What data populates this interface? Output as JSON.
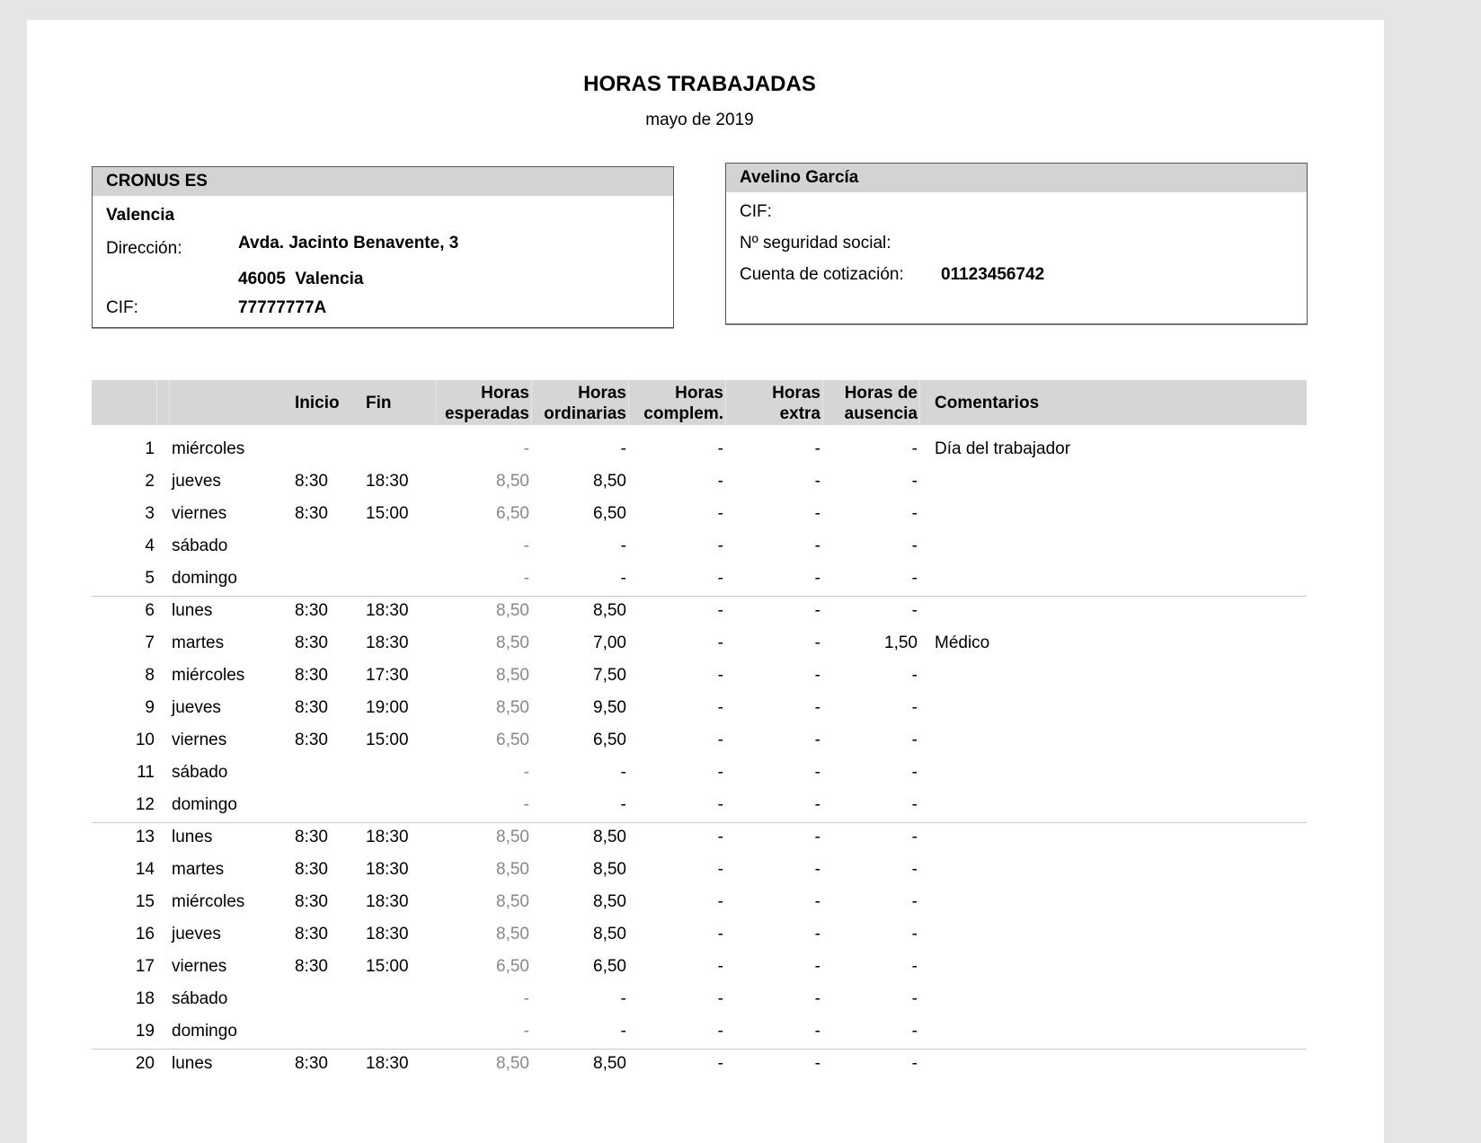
{
  "title": "HORAS TRABAJADAS",
  "period": "mayo de 2019",
  "company": {
    "name": "CRONUS ES",
    "city": "Valencia",
    "address_label": "Dirección:",
    "address_line1": "Avda. Jacinto Benavente, 3",
    "address_line2": "46005  Valencia",
    "cif_label": "CIF:",
    "cif": "77777777A"
  },
  "employee": {
    "name": "Avelino García",
    "cif_label": "CIF:",
    "ss_label": "Nº seguridad social:",
    "account_label": "Cuenta de cotización:",
    "account": "01123456742"
  },
  "columns": {
    "inicio": "Inicio",
    "fin": "Fin",
    "esperadas": [
      "Horas",
      "esperadas"
    ],
    "ordinarias": [
      "Horas",
      "ordinarias"
    ],
    "complem": [
      "Horas",
      "complem."
    ],
    "extra": [
      "Horas",
      "extra"
    ],
    "ausencia": [
      "Horas de",
      "ausencia"
    ],
    "comentarios": "Comentarios"
  },
  "rows": [
    [
      "1",
      "miércoles",
      "",
      "",
      "-",
      "-",
      "-",
      "-",
      "-",
      "Día del trabajador"
    ],
    [
      "2",
      "jueves",
      "8:30",
      "18:30",
      "8,50",
      "8,50",
      "-",
      "-",
      "-",
      ""
    ],
    [
      "3",
      "viernes",
      "8:30",
      "15:00",
      "6,50",
      "6,50",
      "-",
      "-",
      "-",
      ""
    ],
    [
      "4",
      "sábado",
      "",
      "",
      "-",
      "-",
      "-",
      "-",
      "-",
      ""
    ],
    [
      "5",
      "domingo",
      "",
      "",
      "-",
      "-",
      "-",
      "-",
      "-",
      ""
    ],
    [
      "6",
      "lunes",
      "8:30",
      "18:30",
      "8,50",
      "8,50",
      "-",
      "-",
      "-",
      ""
    ],
    [
      "7",
      "martes",
      "8:30",
      "18:30",
      "8,50",
      "7,00",
      "-",
      "-",
      "1,50",
      "Médico"
    ],
    [
      "8",
      "miércoles",
      "8:30",
      "17:30",
      "8,50",
      "7,50",
      "-",
      "-",
      "-",
      ""
    ],
    [
      "9",
      "jueves",
      "8:30",
      "19:00",
      "8,50",
      "9,50",
      "-",
      "-",
      "-",
      ""
    ],
    [
      "10",
      "viernes",
      "8:30",
      "15:00",
      "6,50",
      "6,50",
      "-",
      "-",
      "-",
      ""
    ],
    [
      "11",
      "sábado",
      "",
      "",
      "-",
      "-",
      "-",
      "-",
      "-",
      ""
    ],
    [
      "12",
      "domingo",
      "",
      "",
      "-",
      "-",
      "-",
      "-",
      "-",
      ""
    ],
    [
      "13",
      "lunes",
      "8:30",
      "18:30",
      "8,50",
      "8,50",
      "-",
      "-",
      "-",
      ""
    ],
    [
      "14",
      "martes",
      "8:30",
      "18:30",
      "8,50",
      "8,50",
      "-",
      "-",
      "-",
      ""
    ],
    [
      "15",
      "miércoles",
      "8:30",
      "18:30",
      "8,50",
      "8,50",
      "-",
      "-",
      "-",
      ""
    ],
    [
      "16",
      "jueves",
      "8:30",
      "18:30",
      "8,50",
      "8,50",
      "-",
      "-",
      "-",
      ""
    ],
    [
      "17",
      "viernes",
      "8:30",
      "15:00",
      "6,50",
      "6,50",
      "-",
      "-",
      "-",
      ""
    ],
    [
      "18",
      "sábado",
      "",
      "",
      "-",
      "-",
      "-",
      "-",
      "-",
      ""
    ],
    [
      "19",
      "domingo",
      "",
      "",
      "-",
      "-",
      "-",
      "-",
      "-",
      ""
    ],
    [
      "20",
      "lunes",
      "8:30",
      "18:30",
      "8,50",
      "8,50",
      "-",
      "-",
      "-",
      ""
    ]
  ]
}
